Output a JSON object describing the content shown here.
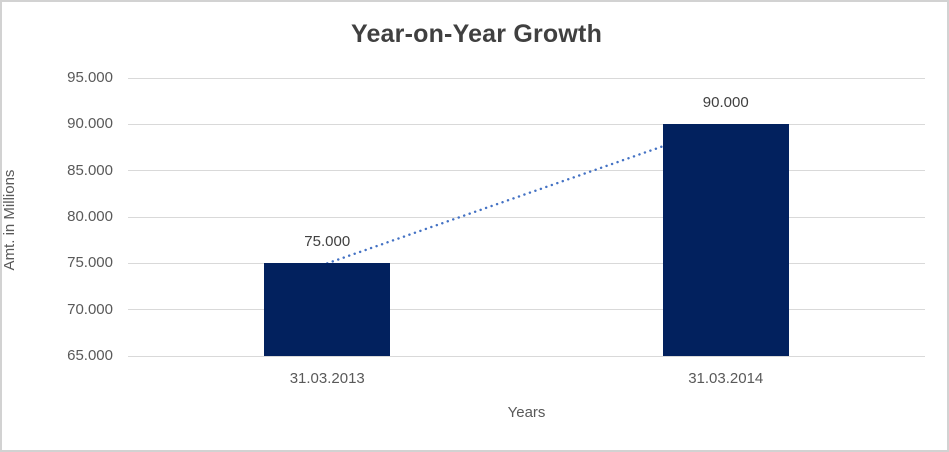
{
  "chart_data": {
    "type": "bar",
    "title": "Year-on-Year Growth",
    "xlabel": "Years",
    "ylabel": "Amt. in Millions",
    "categories": [
      "31.03.2013",
      "31.03.2014"
    ],
    "series": [
      {
        "name": "Amt. in Millions",
        "values": [
          75000,
          90000
        ]
      }
    ],
    "value_labels": [
      "75.000",
      "90.000"
    ],
    "ylim": [
      65000,
      95000
    ],
    "ytick_values": [
      65000,
      70000,
      75000,
      80000,
      85000,
      90000,
      95000
    ],
    "ytick_labels": [
      "65.000",
      "70.000",
      "75.000",
      "80.000",
      "85.000",
      "90.000",
      "95.000"
    ],
    "grid": true,
    "legend": "none",
    "trendline": {
      "style": "dotted",
      "connects": "bar tops",
      "color": "#4472c4"
    },
    "colors": {
      "bar": "#02215e",
      "trendline": "#4472c4",
      "gridline": "#d9d9d9",
      "title_text": "#404040",
      "axis_text": "#595959",
      "frame_border": "#d2d2d2",
      "background": "#ffffff"
    }
  }
}
